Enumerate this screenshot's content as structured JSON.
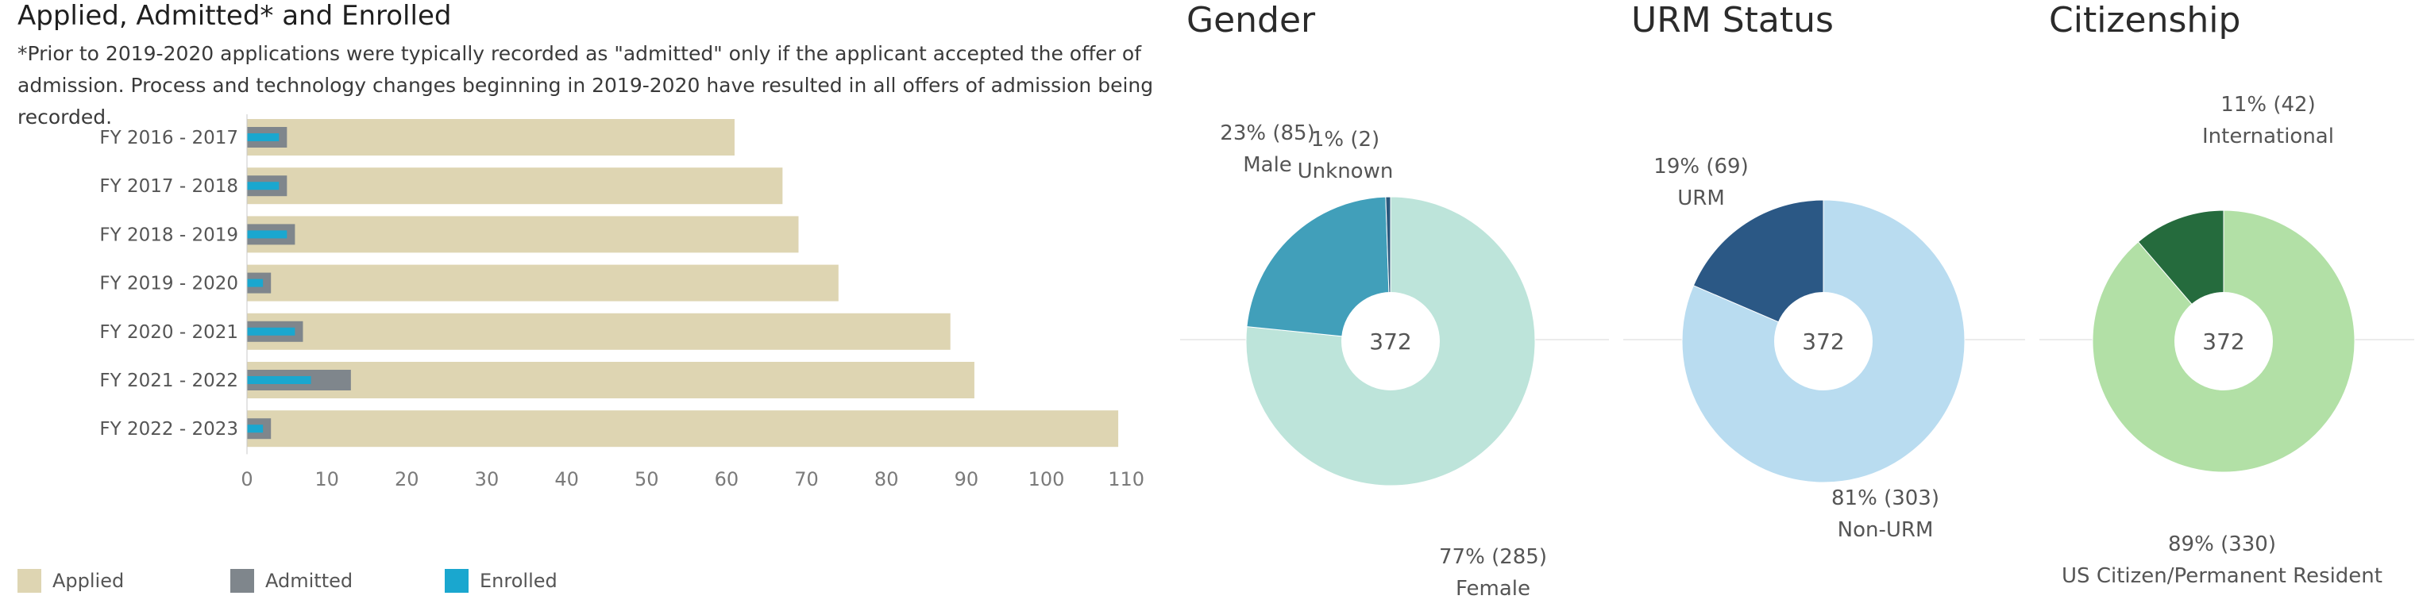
{
  "bar_panel": {
    "title": "Applied, Admitted* and Enrolled",
    "note": "*Prior to 2019-2020 applications were typically recorded as \"admitted\" only if the applicant accepted the offer of admission. Process and technology changes beginning in 2019-2020 have resulted in all offers of admission being recorded."
  },
  "legend": [
    {
      "label": "Applied",
      "color": "#ded5b2"
    },
    {
      "label": "Admitted",
      "color": "#7f868c"
    },
    {
      "label": "Enrolled",
      "color": "#1aa7cf"
    }
  ],
  "colors": {
    "applied": "#ded5b2",
    "admitted": "#7f868c",
    "enrolled": "#1aa7cf"
  },
  "chart_data": [
    {
      "type": "bar",
      "orientation": "horizontal",
      "title": "Applied, Admitted* and Enrolled",
      "categories": [
        "FY 2016 - 2017",
        "FY 2017 - 2018",
        "FY 2018 - 2019",
        "FY 2019 - 2020",
        "FY 2020 - 2021",
        "FY 2021 - 2022",
        "FY 2022 - 2023"
      ],
      "series": [
        {
          "name": "Applied",
          "values": [
            61,
            67,
            69,
            74,
            88,
            91,
            109
          ]
        },
        {
          "name": "Admitted",
          "values": [
            5,
            5,
            6,
            3,
            7,
            13,
            3
          ]
        },
        {
          "name": "Enrolled",
          "values": [
            4,
            4,
            5,
            2,
            6,
            8,
            2
          ]
        }
      ],
      "xticks": [
        0,
        10,
        20,
        30,
        40,
        50,
        60,
        70,
        80,
        90,
        100,
        110
      ],
      "xlim": [
        0,
        114
      ],
      "legend": "bottom-left"
    },
    {
      "type": "pie",
      "title": "Gender",
      "total": "372",
      "slices": [
        {
          "label": "Female",
          "value": 285,
          "text": "77% (285)",
          "color": "#bde4da"
        },
        {
          "label": "Male",
          "value": 85,
          "text": "23% (85)",
          "color": "#419fba"
        },
        {
          "label": "Unknown",
          "value": 2,
          "text": "1% (2)",
          "color": "#2a587c"
        }
      ]
    },
    {
      "type": "pie",
      "title": "URM Status",
      "total": "372",
      "slices": [
        {
          "label": "Non-URM",
          "value": 303,
          "text": "81% (303)",
          "color": "#b9dcf0"
        },
        {
          "label": "URM",
          "value": 69,
          "text": "19% (69)",
          "color": "#2b5885"
        }
      ]
    },
    {
      "type": "pie",
      "title": "Citizenship",
      "total": "372",
      "slices": [
        {
          "label": "US Citizen/Permanent Resident",
          "value": 330,
          "text": "89% (330)",
          "color": "#b2e0a6"
        },
        {
          "label": "International",
          "value": 42,
          "text": "11% (42)",
          "color": "#256b3d"
        }
      ]
    }
  ]
}
